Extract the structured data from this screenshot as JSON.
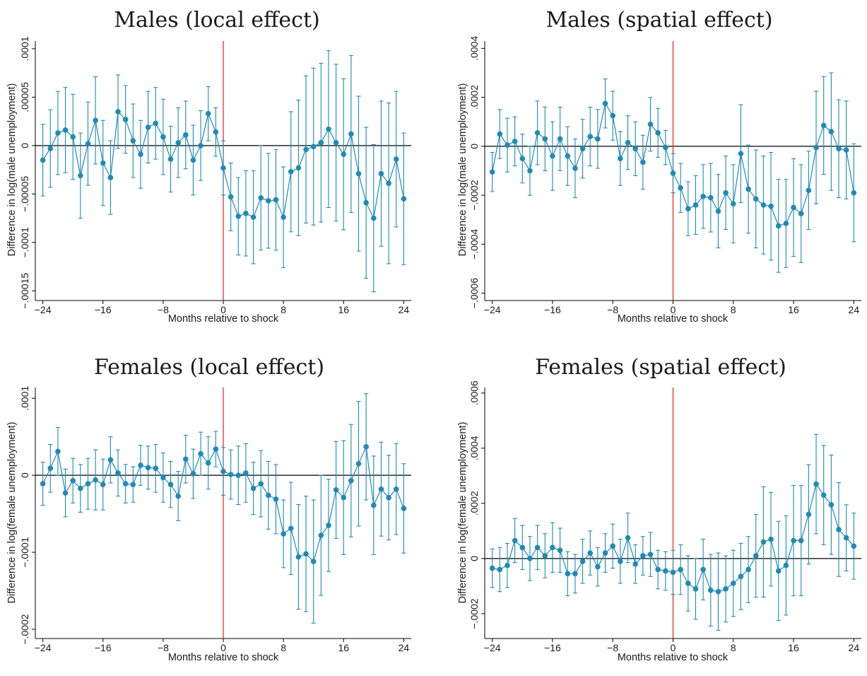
{
  "chart_data": [
    {
      "type": "scatter",
      "title": "Males (local effect)",
      "xlabel": "Months relative to shock",
      "ylabel": "Difference in log(male unemployment)",
      "xlim": [
        -25,
        25
      ],
      "ylim": [
        -0.00016,
        0.000108
      ],
      "xticks": [
        -24,
        -16,
        -8,
        0,
        8,
        16,
        24
      ],
      "xtick_labels": [
        "−24",
        "−16",
        "−8",
        "0",
        "8",
        "16",
        "24"
      ],
      "yticks": [
        -0.00015,
        -0.0001,
        -5e-05,
        0,
        5e-05,
        0.0001
      ],
      "ytick_labels": [
        "−.00015",
        "−.0001",
        "−.00005",
        "0",
        ".00005",
        ".0001"
      ],
      "x": [
        -24,
        -23,
        -22,
        -21,
        -20,
        -19,
        -18,
        -17,
        -16,
        -15,
        -14,
        -13,
        -12,
        -11,
        -10,
        -9,
        -8,
        -7,
        -6,
        -5,
        -4,
        -3,
        -2,
        -1,
        0,
        1,
        2,
        3,
        4,
        5,
        6,
        7,
        8,
        9,
        10,
        11,
        12,
        13,
        14,
        15,
        16,
        17,
        18,
        19,
        20,
        21,
        22,
        23,
        24
      ],
      "y": [
        -1.5e-05,
        -3e-06,
        1.3e-05,
        1.6e-05,
        9e-06,
        -3.1e-05,
        2e-06,
        2.6e-05,
        -1.8e-05,
        -3.3e-05,
        3.5e-05,
        2.7e-05,
        5e-06,
        -9e-06,
        1.9e-05,
        2.3e-05,
        9e-06,
        -1.4e-05,
        3e-06,
        1.1e-05,
        -1.5e-05,
        0.0,
        3.3e-05,
        1.4e-05,
        -2.3e-05,
        -5.3e-05,
        -7.3e-05,
        -7e-05,
        -7.4e-05,
        -5.4e-05,
        -5.7e-05,
        -5.6e-05,
        -7.4e-05,
        -2.7e-05,
        -2.3e-05,
        -4e-06,
        -1e-06,
        3e-06,
        1.7e-05,
        3e-06,
        -9e-06,
        1.2e-05,
        -2.9e-05,
        -5.9e-05,
        -7.5e-05,
        -2.9e-05,
        -3.9e-05,
        -1.4e-05,
        -5.5e-05
      ],
      "ci": [
        3.7e-05,
        4e-05,
        4.3e-05,
        4.4e-05,
        4.4e-05,
        4.4e-05,
        4.3e-05,
        4.5e-05,
        4.4e-05,
        3.8e-05,
        3.8e-05,
        3.5e-05,
        3.8e-05,
        3.5e-05,
        3.7e-05,
        3.7e-05,
        3.9e-05,
        3.4e-05,
        3.6e-05,
        3.5e-05,
        3.6e-05,
        3.6e-05,
        2.8e-05,
        2.5e-05,
        2.8e-05,
        3.5e-05,
        4e-05,
        4.4e-05,
        4.8e-05,
        5.4e-05,
        4.9e-05,
        5.2e-05,
        5.2e-05,
        6.2e-05,
        7e-05,
        7.6e-05,
        8.1e-05,
        8.2e-05,
        8.1e-05,
        8.1e-05,
        7.8e-05,
        8.1e-05,
        8e-05,
        7.8e-05,
        7.6e-05,
        7.5e-05,
        8.3e-05,
        7e-05,
        6.8e-05
      ],
      "series_color": "#1f8ab5",
      "zero_line_color": "#000000",
      "shock_line_color": "#e0211a",
      "shock_x": 0
    },
    {
      "type": "scatter",
      "title": "Males (spatial effect)",
      "xlabel": "Months relative to shock",
      "ylabel": "Difference in log(male unemployment)",
      "xlim": [
        -25,
        25
      ],
      "ylim": [
        -0.00063,
        0.00043
      ],
      "xticks": [
        -24,
        -16,
        -8,
        0,
        8,
        16,
        24
      ],
      "xtick_labels": [
        "−24",
        "−16",
        "−8",
        "0",
        "8",
        "16",
        "24"
      ],
      "yticks": [
        -0.0006,
        -0.0004,
        -0.0002,
        0,
        0.0002,
        0.0004
      ],
      "ytick_labels": [
        "−.0006",
        "−.0004",
        "−.0002",
        "0",
        ".0002",
        ".0004"
      ],
      "x": [
        -24,
        -23,
        -22,
        -21,
        -20,
        -19,
        -18,
        -17,
        -16,
        -15,
        -14,
        -13,
        -12,
        -11,
        -10,
        -9,
        -8,
        -7,
        -6,
        -5,
        -4,
        -3,
        -2,
        -1,
        0,
        1,
        2,
        3,
        4,
        5,
        6,
        7,
        8,
        9,
        10,
        11,
        12,
        13,
        14,
        15,
        16,
        17,
        18,
        19,
        20,
        21,
        22,
        23,
        24
      ],
      "y": [
        -0.000105,
        5e-05,
        5e-06,
        2e-05,
        -5e-05,
        -0.0001,
        5.5e-05,
        3e-05,
        -4e-05,
        3e-05,
        -4e-05,
        -9e-05,
        -1e-05,
        4e-05,
        3e-05,
        0.000175,
        0.000125,
        -5e-05,
        1.5e-05,
        -1e-05,
        -6.5e-05,
        9e-05,
        5.5e-05,
        -5e-06,
        -0.00011,
        -0.00017,
        -0.000255,
        -0.00024,
        -0.000205,
        -0.00021,
        -0.000265,
        -0.00019,
        -0.000235,
        -3e-05,
        -0.000175,
        -0.000215,
        -0.00024,
        -0.000245,
        -0.000325,
        -0.000315,
        -0.00025,
        -0.000275,
        -0.00018,
        -5e-06,
        8.5e-05,
        6e-05,
        -1e-05,
        -1.5e-05,
        -0.00019
      ],
      "ci": [
        8e-05,
        0.0001,
        0.00011,
        0.0001,
        0.0001,
        0.0001,
        0.00013,
        0.00013,
        0.00014,
        0.00013,
        0.00012,
        0.00012,
        0.00012,
        0.00012,
        0.00012,
        0.0001,
        0.0001,
        0.00011,
        0.00011,
        0.00011,
        0.00011,
        0.00011,
        0.0001,
        7e-05,
        8e-05,
        0.0001,
        0.00011,
        0.00012,
        0.00013,
        0.00014,
        0.00015,
        0.00015,
        0.00016,
        0.0002,
        0.00018,
        0.0002,
        0.0002,
        0.00022,
        0.00019,
        0.00018,
        0.0002,
        0.0002,
        0.00016,
        0.00023,
        0.0002,
        0.00024,
        0.0002,
        0.0002,
        0.0002
      ],
      "series_color": "#1f8ab5",
      "zero_line_color": "#000000",
      "shock_line_color": "#e0211a",
      "shock_x": 0
    },
    {
      "type": "scatter",
      "title": "Females (local effect)",
      "xlabel": "Months relative to shock",
      "ylabel": "Difference in log(female unemployment)",
      "xlim": [
        -25,
        25
      ],
      "ylim": [
        -0.000212,
        0.000114
      ],
      "xticks": [
        -24,
        -16,
        -8,
        0,
        8,
        16,
        24
      ],
      "xtick_labels": [
        "−24",
        "−16",
        "−8",
        "0",
        "8",
        "16",
        "24"
      ],
      "yticks": [
        -0.0002,
        -0.0001,
        0,
        0.0001
      ],
      "ytick_labels": [
        "−.0002",
        "−.0001",
        "0",
        ".0001"
      ],
      "x": [
        -24,
        -23,
        -22,
        -21,
        -20,
        -19,
        -18,
        -17,
        -16,
        -15,
        -14,
        -13,
        -12,
        -11,
        -10,
        -9,
        -8,
        -7,
        -6,
        -5,
        -4,
        -3,
        -2,
        -1,
        0,
        1,
        2,
        3,
        4,
        5,
        6,
        7,
        8,
        9,
        10,
        11,
        12,
        13,
        14,
        15,
        16,
        17,
        18,
        19,
        20,
        21,
        22,
        23,
        24
      ],
      "y": [
        -1.1e-05,
        9e-06,
        3.1e-05,
        -2.3e-05,
        -7e-06,
        -1.7e-05,
        -1.1e-05,
        -6e-06,
        -1.2e-05,
        2e-05,
        3e-06,
        -1.1e-05,
        -1.2e-05,
        1.3e-05,
        1e-05,
        9e-06,
        -3e-06,
        -1.2e-05,
        -2.7e-05,
        2.1e-05,
        2e-06,
        2.8e-05,
        1.6e-05,
        3.4e-05,
        5e-06,
        1e-06,
        0.0,
        3e-06,
        -1.7e-05,
        -1.1e-05,
        -2.6e-05,
        -3.1e-05,
        -7.6e-05,
        -6.9e-05,
        -0.000106,
        -0.000102,
        -0.000112,
        -7.8e-05,
        -6.5e-05,
        -1.9e-05,
        -2.9e-05,
        -7e-06,
        1.5e-05,
        3.7e-05,
        -3.9e-05,
        -1.8e-05,
        -2.9e-05,
        -1.8e-05,
        -4.3e-05
      ],
      "ci": [
        2.8e-05,
        3.1e-05,
        3.1e-05,
        3.1e-05,
        2.9e-05,
        3.1e-05,
        3.3e-05,
        3.9e-05,
        3.3e-05,
        3e-05,
        3e-05,
        2.5e-05,
        2.3e-05,
        2.6e-05,
        2.8e-05,
        3.1e-05,
        3.2e-05,
        3e-05,
        3.2e-05,
        3.1e-05,
        3.2e-05,
        2.8e-05,
        3.4e-05,
        2.3e-05,
        3.1e-05,
        3.2e-05,
        3.8e-05,
        3.8e-05,
        3.4e-05,
        4.3e-05,
        4.4e-05,
        4.5e-05,
        4.4e-05,
        6e-05,
        6.8e-05,
        7.5e-05,
        8e-05,
        7.8e-05,
        6e-05,
        6.3e-05,
        7.4e-05,
        7.3e-05,
        8.1e-05,
        6.9e-05,
        6.4e-05,
        6.1e-05,
        5.5e-05,
        5.9e-05,
        5.8e-05
      ],
      "series_color": "#1f8ab5",
      "zero_line_color": "#000000",
      "shock_line_color": "#e0211a",
      "shock_x": 0
    },
    {
      "type": "scatter",
      "title": "Females (spatial effect)",
      "xlabel": "Months relative to shock",
      "ylabel": "Difference in log(female unemployment)",
      "xlim": [
        -25,
        25
      ],
      "ylim": [
        -0.00029,
        0.00062
      ],
      "xticks": [
        -24,
        -16,
        -8,
        0,
        8,
        16,
        24
      ],
      "xtick_labels": [
        "−24",
        "−16",
        "−8",
        "0",
        "8",
        "16",
        "24"
      ],
      "yticks": [
        -0.0002,
        0,
        0.0002,
        0.0004,
        0.0006
      ],
      "ytick_labels": [
        "−.0002",
        "0",
        ".0002",
        ".0004",
        ".0006"
      ],
      "x": [
        -24,
        -23,
        -22,
        -21,
        -20,
        -19,
        -18,
        -17,
        -16,
        -15,
        -14,
        -13,
        -12,
        -11,
        -10,
        -9,
        -8,
        -7,
        -6,
        -5,
        -4,
        -3,
        -2,
        -1,
        0,
        1,
        2,
        3,
        4,
        5,
        6,
        7,
        8,
        9,
        10,
        11,
        12,
        13,
        14,
        15,
        16,
        17,
        18,
        19,
        20,
        21,
        22,
        23,
        24
      ],
      "y": [
        -3.5e-05,
        -4e-05,
        -2.5e-05,
        6.5e-05,
        4e-05,
        0.0,
        4e-05,
        1e-05,
        4e-05,
        3e-05,
        -5.5e-05,
        -5.5e-05,
        -1e-05,
        2e-05,
        -3e-05,
        2e-05,
        4.5e-05,
        -1e-05,
        7.5e-05,
        -2e-05,
        1e-05,
        1.5e-05,
        -4e-05,
        -4.5e-05,
        -5e-05,
        -4e-05,
        -9e-05,
        -0.00011,
        -4e-05,
        -0.000115,
        -0.00012,
        -0.00011,
        -9e-05,
        -6.5e-05,
        -4e-05,
        1e-05,
        6e-05,
        7e-05,
        -4.5e-05,
        -2.5e-05,
        6.5e-05,
        6.5e-05,
        0.00016,
        0.00027,
        0.00023,
        0.000195,
        0.000105,
        7.5e-05,
        4.5e-05
      ],
      "ci": [
        7e-05,
        8e-05,
        8e-05,
        8e-05,
        8e-05,
        8e-05,
        8e-05,
        8e-05,
        9e-05,
        8e-05,
        8e-05,
        7e-05,
        8e-05,
        8e-05,
        7e-05,
        7e-05,
        8e-05,
        8e-05,
        9e-05,
        7e-05,
        7e-05,
        8e-05,
        7e-05,
        7e-05,
        8e-05,
        9e-05,
        0.0001,
        0.00011,
        0.00011,
        0.00013,
        0.00014,
        0.00012,
        0.00012,
        0.00012,
        0.00012,
        0.00015,
        0.0002,
        0.00017,
        0.00018,
        0.00018,
        0.0002,
        0.0002,
        0.00018,
        0.00018,
        0.00018,
        0.00018,
        0.00017,
        0.00012,
        0.00012
      ],
      "series_color": "#1f8ab5",
      "zero_line_color": "#000000",
      "shock_line_color": "#e0211a",
      "shock_x": 0
    }
  ]
}
